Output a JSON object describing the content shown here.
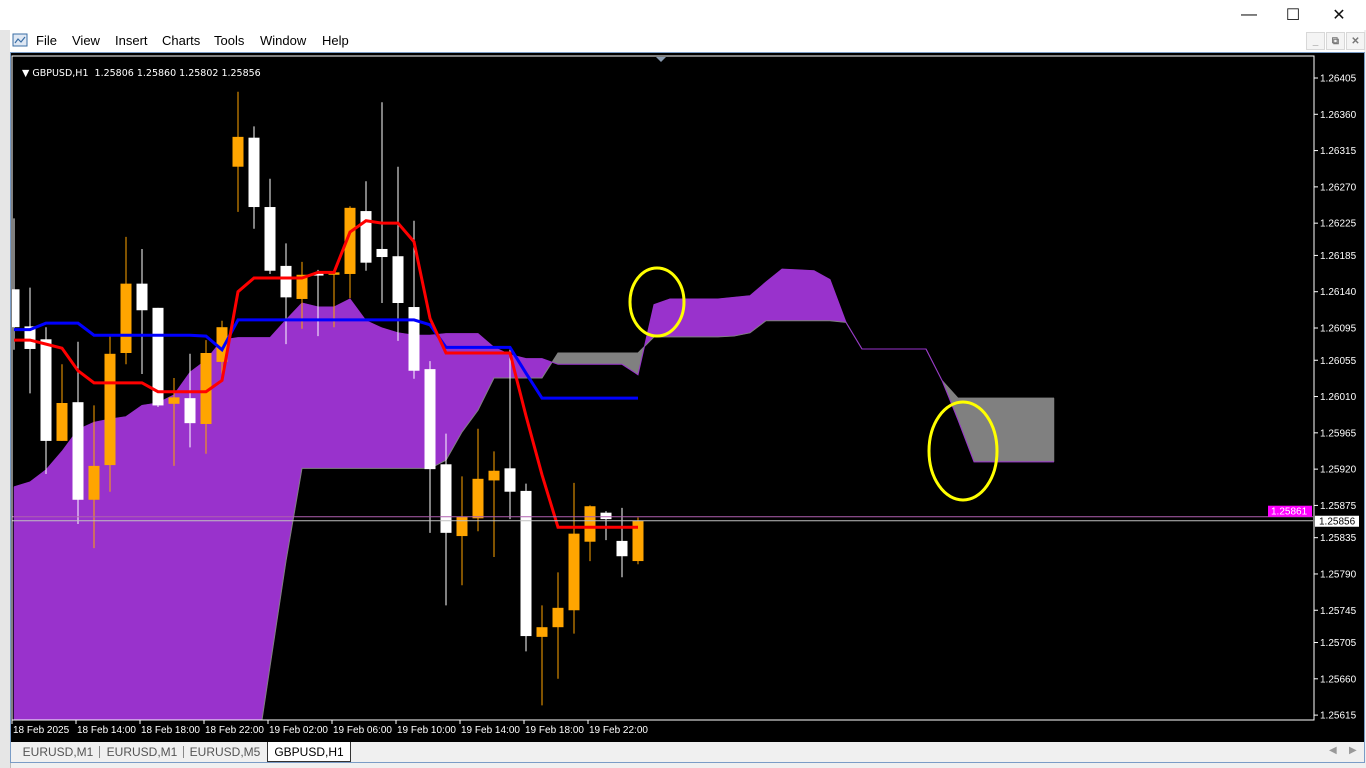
{
  "window": {
    "minimize": "—",
    "maximize": "☐",
    "close": "✕"
  },
  "menu": {
    "items": [
      "File",
      "View",
      "Insert",
      "Charts",
      "Tools",
      "Window",
      "Help"
    ]
  },
  "mdi": {
    "minimize": "_",
    "restore": "⧉",
    "close": "✕"
  },
  "chart": {
    "symbol_header": "GBPUSD,H1  1.25806 1.25860 1.25802 1.25856",
    "price_ticks": [
      "1.26405",
      "1.26360",
      "1.26315",
      "1.26270",
      "1.26225",
      "1.26185",
      "1.26140",
      "1.26095",
      "1.26055",
      "1.26010",
      "1.25965",
      "1.25920",
      "1.25875",
      "1.25835",
      "1.25790",
      "1.25745",
      "1.25705",
      "1.25660",
      "1.25615"
    ],
    "bid_label": "1.25856",
    "ask_label": "1.25861",
    "time_labels": [
      "18 Feb 2025",
      "18 Feb 14:00",
      "18 Feb 18:00",
      "18 Feb 22:00",
      "19 Feb 02:00",
      "19 Feb 06:00",
      "19 Feb 10:00",
      "19 Feb 14:00",
      "19 Feb 18:00",
      "19 Feb 22:00"
    ]
  },
  "chart_data": {
    "type": "candlestick",
    "symbol": "GBPUSD",
    "timeframe": "H1",
    "ylim": [
      1.25595,
      1.26432
    ],
    "bid": 1.25856,
    "ask": 1.25861,
    "candles_ohlc": [
      [
        1.26143,
        1.26231,
        1.26068,
        1.26096
      ],
      [
        1.26097,
        1.26145,
        1.26014,
        1.26069
      ],
      [
        1.26081,
        1.26096,
        1.25914,
        1.25955
      ],
      [
        1.25955,
        1.2605,
        1.25955,
        1.26002
      ],
      [
        1.26003,
        1.26078,
        1.25852,
        1.25882
      ],
      [
        1.25882,
        1.25999,
        1.25822,
        1.25924
      ],
      [
        1.25925,
        1.26085,
        1.25892,
        1.26063
      ],
      [
        1.26064,
        1.26208,
        1.2605,
        1.2615
      ],
      [
        1.2615,
        1.26193,
        1.26038,
        1.26117
      ],
      [
        1.2612,
        1.2612,
        1.25997,
        1.25999
      ],
      [
        1.26001,
        1.26033,
        1.25924,
        1.26009
      ],
      [
        1.26008,
        1.26063,
        1.25947,
        1.25977
      ],
      [
        1.25976,
        1.2608,
        1.25939,
        1.26064
      ],
      [
        1.26053,
        1.26104,
        1.2603,
        1.26096
      ],
      [
        1.26295,
        1.26388,
        1.26239,
        1.26332
      ],
      [
        1.26331,
        1.26345,
        1.26218,
        1.26245
      ],
      [
        1.26245,
        1.2628,
        1.26162,
        1.26166
      ],
      [
        1.26172,
        1.262,
        1.26075,
        1.26133
      ],
      [
        1.26131,
        1.26177,
        1.26094,
        1.26161
      ],
      [
        1.26163,
        1.26167,
        1.26085,
        1.2616
      ],
      [
        1.26161,
        1.26167,
        1.26096,
        1.26164
      ],
      [
        1.26162,
        1.26246,
        1.26132,
        1.26244
      ],
      [
        1.2624,
        1.26277,
        1.26166,
        1.26176
      ],
      [
        1.26193,
        1.26375,
        1.26126,
        1.26183
      ],
      [
        1.26184,
        1.26295,
        1.26079,
        1.26126
      ],
      [
        1.26121,
        1.26228,
        1.26032,
        1.26042
      ],
      [
        1.26044,
        1.26054,
        1.25841,
        1.2592
      ],
      [
        1.25926,
        1.25964,
        1.25751,
        1.25841
      ],
      [
        1.25837,
        1.25911,
        1.25776,
        1.25861
      ],
      [
        1.25859,
        1.2597,
        1.25843,
        1.25908
      ],
      [
        1.25906,
        1.25942,
        1.25811,
        1.25918
      ],
      [
        1.25921,
        1.26069,
        1.25858,
        1.25892
      ],
      [
        1.25893,
        1.25902,
        1.25694,
        1.25713
      ],
      [
        1.25712,
        1.25751,
        1.25627,
        1.25724
      ],
      [
        1.25724,
        1.25792,
        1.2566,
        1.25748
      ],
      [
        1.25745,
        1.25903,
        1.25716,
        1.2584
      ],
      [
        1.2583,
        1.25875,
        1.25806,
        1.25874
      ],
      [
        1.25866,
        1.25868,
        1.25832,
        1.25858
      ],
      [
        1.25831,
        1.25872,
        1.25786,
        1.25812
      ],
      [
        1.25806,
        1.2586,
        1.25802,
        1.25856
      ]
    ],
    "tenkan_sen": [
      1.2608,
      1.2608,
      1.26075,
      1.2607,
      1.26042,
      1.26027,
      1.26027,
      1.26027,
      1.26027,
      1.26016,
      1.26016,
      1.26016,
      1.26016,
      1.2603,
      1.2614,
      1.26157,
      1.26157,
      1.26157,
      1.26157,
      1.26164,
      1.26164,
      1.26214,
      1.26228,
      1.26225,
      1.26225,
      1.26202,
      1.26107,
      1.26064,
      1.26064,
      1.26064,
      1.26064,
      1.26064,
      1.25986,
      1.25913,
      1.25848,
      1.25848,
      1.25848,
      1.25848,
      1.25848,
      1.25848
    ],
    "kijun_sen": [
      1.26093,
      1.26093,
      1.26101,
      1.26101,
      1.26101,
      1.26086,
      1.26086,
      1.26086,
      1.26086,
      1.26086,
      1.26086,
      1.26086,
      1.26085,
      1.26068,
      1.26105,
      1.26105,
      1.26105,
      1.26105,
      1.26105,
      1.26105,
      1.26105,
      1.26105,
      1.26105,
      1.26105,
      1.26105,
      1.26105,
      1.26099,
      1.26071,
      1.26071,
      1.26071,
      1.26071,
      1.26071,
      1.26039,
      1.26008,
      1.26008,
      1.26008,
      1.26008,
      1.26008,
      1.26008,
      1.26008
    ],
    "senkou_span_a": [
      1.25898,
      1.25904,
      1.25919,
      1.25942,
      1.25969,
      1.25978,
      1.25982,
      1.25985,
      1.25999,
      1.26002,
      1.26012,
      1.2604,
      1.26055,
      1.2608,
      1.26083,
      1.26083,
      1.26083,
      1.26105,
      1.26126,
      1.26121,
      1.26121,
      1.26131,
      1.26104,
      1.26095,
      1.26089,
      1.26086,
      1.26086,
      1.26088,
      1.26088,
      1.26088,
      1.26071,
      1.26062,
      1.26057,
      1.26057,
      1.2605,
      1.2605,
      1.2605,
      1.2605,
      1.2605,
      1.26037,
      1.26124,
      1.26131,
      1.26131,
      1.26131,
      1.26131,
      1.26133,
      1.26135,
      1.26152,
      1.26168,
      1.26167,
      1.26166,
      1.26155,
      1.26102,
      1.26069,
      1.26069,
      1.26069,
      1.26069,
      1.26069,
      1.2603,
      1.25981,
      1.25929,
      1.25929,
      1.25929,
      1.25929,
      1.25929,
      1.25929
    ],
    "senkou_span_b": [
      1.25543,
      1.25543,
      1.25543,
      1.25543,
      1.25543,
      1.25543,
      1.25543,
      1.25543,
      1.25543,
      1.25543,
      1.25543,
      1.25543,
      1.25543,
      1.25543,
      1.25543,
      1.25543,
      1.25675,
      1.25806,
      1.25921,
      1.25921,
      1.25921,
      1.25921,
      1.25921,
      1.25921,
      1.25921,
      1.25921,
      1.25921,
      1.25931,
      1.25966,
      1.25993,
      1.26033,
      1.26033,
      1.26033,
      1.26033,
      1.26064,
      1.26064,
      1.26064,
      1.26064,
      1.26064,
      1.26064,
      1.26084,
      1.26084,
      1.26084,
      1.26084,
      1.26084,
      1.26085,
      1.26089,
      1.26104,
      1.26104,
      1.26104,
      1.26104,
      1.26104,
      1.26102,
      1.26069,
      1.26069,
      1.26069,
      1.26069,
      1.26069,
      1.2603,
      1.26008,
      1.26008,
      1.26008,
      1.26008,
      1.26008,
      1.26008,
      1.26008
    ],
    "colors": {
      "bull": "#FFA500",
      "bear": "#FFFFFF",
      "tenkan": "#FF0000",
      "kijun": "#0000FF",
      "cloud_up": "#9932CC",
      "cloud_down": "#808080",
      "annotation": "#FFFF00",
      "ask_line": "#FF00FF",
      "bid_line": "#C0C0C0",
      "background": "#000000"
    },
    "grid": false
  },
  "tabs": [
    "EURUSD,M1",
    "EURUSD,M1",
    "EURUSD,M5",
    "GBPUSD,H1"
  ],
  "active_tab": 3,
  "tab_scroll": {
    "left": "◀",
    "right": "▶"
  }
}
